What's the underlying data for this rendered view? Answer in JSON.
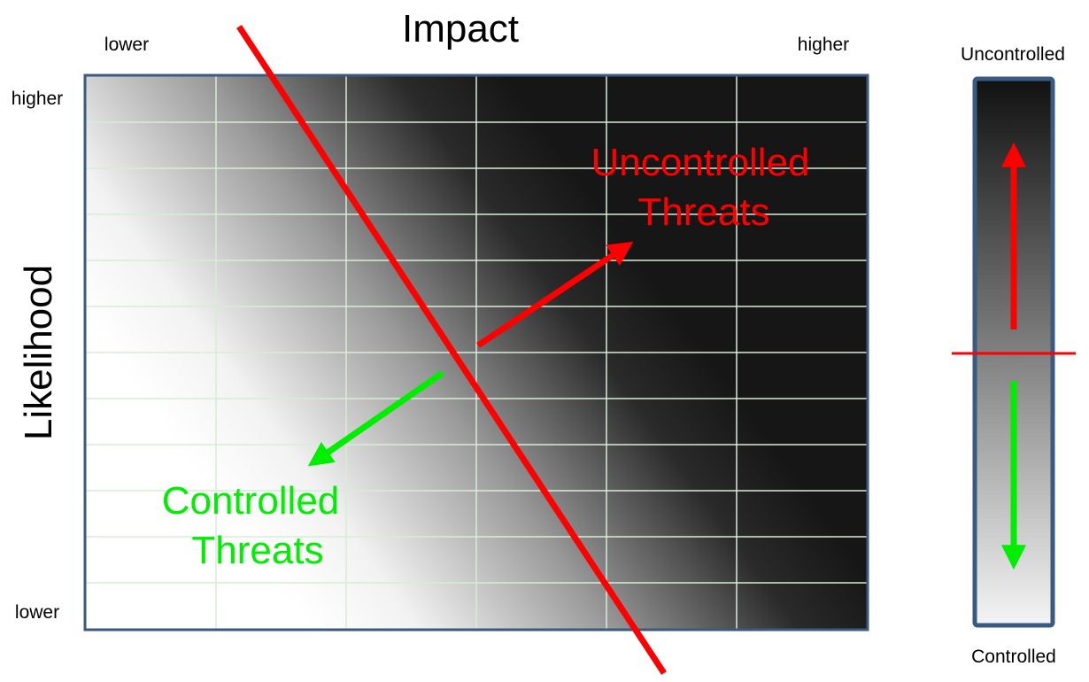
{
  "title": "Impact",
  "x_axis": {
    "low_label": "lower",
    "high_label": "higher"
  },
  "y_axis": {
    "title": "Likelihood",
    "high_label": "higher",
    "low_label": "lower"
  },
  "annotations": {
    "uncontrolled": {
      "line1": "Uncontrolled",
      "line2": "Threats"
    },
    "controlled": {
      "line1": "Controlled",
      "line2": "Threats"
    }
  },
  "scale_bar": {
    "top_label": "Uncontrolled",
    "bottom_label": "Controlled"
  },
  "grid": {
    "columns": 6,
    "rows": 12
  },
  "colors": {
    "threshold_line": "#ff0000",
    "uncontrolled_arrow": "#ff0000",
    "controlled_arrow": "#00ee00",
    "uncontrolled_text": "#ff0000",
    "controlled_text": "#00ee00",
    "frame": "#3a5a80",
    "dark": "#161616",
    "grid_line": "#d8ecd8"
  }
}
